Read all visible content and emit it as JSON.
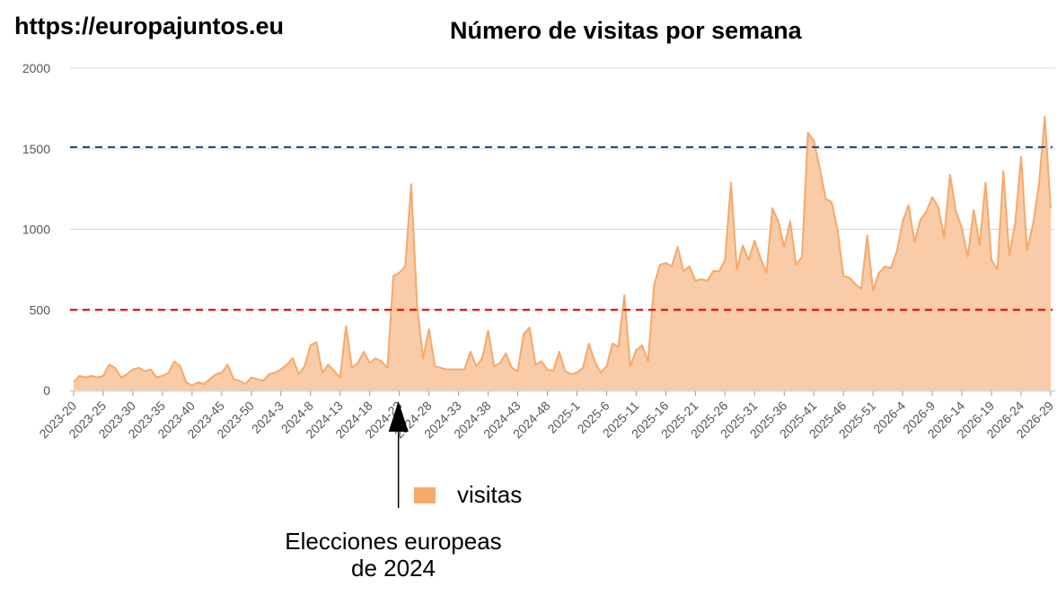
{
  "header": {
    "site_url": "https://europajuntos.eu",
    "title": "Número de visitas por semana"
  },
  "legend": {
    "label": "visitas"
  },
  "annotation": {
    "line1": "Elecciones europeas",
    "line2": "de 2024"
  },
  "colors": {
    "area_fill": "#f9cba6",
    "area_line": "#f5a96b",
    "upper_line": "#1f4e8c",
    "lower_line": "#e01010",
    "grid": "#d9d9d9",
    "annotation_arrow": "#000000"
  },
  "chart_data": {
    "type": "area",
    "title": "Número de visitas por semana",
    "xlabel": "",
    "ylabel": "",
    "ylim": [
      0,
      2000
    ],
    "yticks": [
      0,
      500,
      1000,
      1500,
      2000
    ],
    "grid": true,
    "legend_position": "bottom",
    "x_tick_labels": [
      "2023-20",
      "2023-25",
      "2023-30",
      "2023-35",
      "2023-40",
      "2023-45",
      "2023-50",
      "2024-3",
      "2024-8",
      "2024-13",
      "2024-18",
      "2024-23",
      "2024-28",
      "2024-33",
      "2024-38",
      "2024-43",
      "2024-48",
      "2025-1",
      "2025-6",
      "2025-11",
      "2025-16",
      "2025-21",
      "2025-26",
      "2025-31",
      "2025-36",
      "2025-41",
      "2025-46",
      "2025-51",
      "2026-4",
      "2026-9",
      "2026-14",
      "2026-19",
      "2026-24",
      "2026-29"
    ],
    "reference_lines": [
      {
        "value": 1510,
        "style": "dashed",
        "color": "#1f4e8c"
      },
      {
        "value": 500,
        "style": "dashed",
        "color": "#e01010"
      }
    ],
    "annotation_week": "2024-23",
    "series": [
      {
        "name": "visitas",
        "values": [
          50,
          90,
          80,
          90,
          80,
          90,
          160,
          140,
          80,
          100,
          130,
          140,
          120,
          130,
          80,
          90,
          110,
          180,
          150,
          50,
          30,
          50,
          40,
          70,
          100,
          110,
          160,
          70,
          60,
          40,
          80,
          70,
          60,
          100,
          110,
          130,
          160,
          200,
          100,
          150,
          280,
          300,
          110,
          160,
          120,
          80,
          400,
          140,
          170,
          240,
          170,
          200,
          180,
          140,
          710,
          730,
          770,
          1280,
          530,
          200,
          380,
          150,
          140,
          130,
          130,
          130,
          130,
          240,
          150,
          200,
          370,
          150,
          170,
          230,
          140,
          120,
          350,
          390,
          160,
          180,
          130,
          120,
          240,
          120,
          100,
          110,
          140,
          290,
          180,
          110,
          150,
          290,
          270,
          590,
          150,
          250,
          280,
          180,
          650,
          780,
          790,
          770,
          890,
          740,
          770,
          680,
          690,
          680,
          740,
          740,
          810,
          1290,
          750,
          900,
          810,
          930,
          820,
          730,
          1130,
          1050,
          890,
          1050,
          780,
          830,
          1600,
          1550,
          1380,
          1190,
          1170,
          1000,
          710,
          700,
          660,
          630,
          960,
          620,
          730,
          770,
          760,
          860,
          1050,
          1150,
          920,
          1060,
          1110,
          1200,
          1140,
          950,
          1340,
          1110,
          1010,
          830,
          1120,
          900,
          1290,
          810,
          750,
          1360,
          840,
          1040,
          1450,
          870,
          1030,
          1270,
          1700,
          1130
        ]
      }
    ]
  }
}
